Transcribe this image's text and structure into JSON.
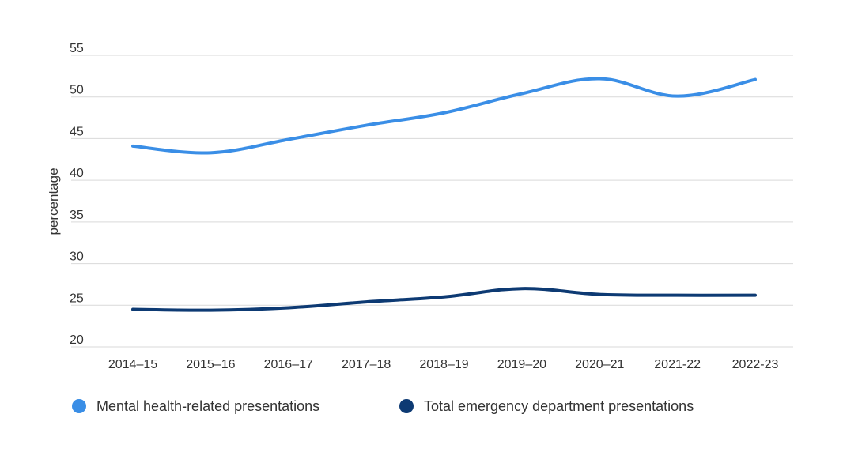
{
  "chart_data": {
    "type": "line",
    "title": "",
    "xlabel": "",
    "ylabel": "percentage",
    "ylim": [
      20,
      55
    ],
    "yticks": [
      20,
      25,
      30,
      35,
      40,
      45,
      50,
      55
    ],
    "grid": true,
    "legend_position": "bottom",
    "categories": [
      "2014–15",
      "2015–16",
      "2016–17",
      "2017–18",
      "2018–19",
      "2019–20",
      "2020–21",
      "2021-22",
      "2022-23"
    ],
    "series": [
      {
        "name": "Mental health-related presentations",
        "color": "#3a8ee6",
        "values": [
          44.1,
          43.3,
          44.9,
          46.6,
          48.1,
          50.4,
          52.2,
          50.1,
          52.1
        ]
      },
      {
        "name": "Total emergency department presentations",
        "color": "#0d3a73",
        "values": [
          24.5,
          24.4,
          24.7,
          25.4,
          26.0,
          27.0,
          26.3,
          26.2,
          26.2
        ]
      }
    ]
  }
}
